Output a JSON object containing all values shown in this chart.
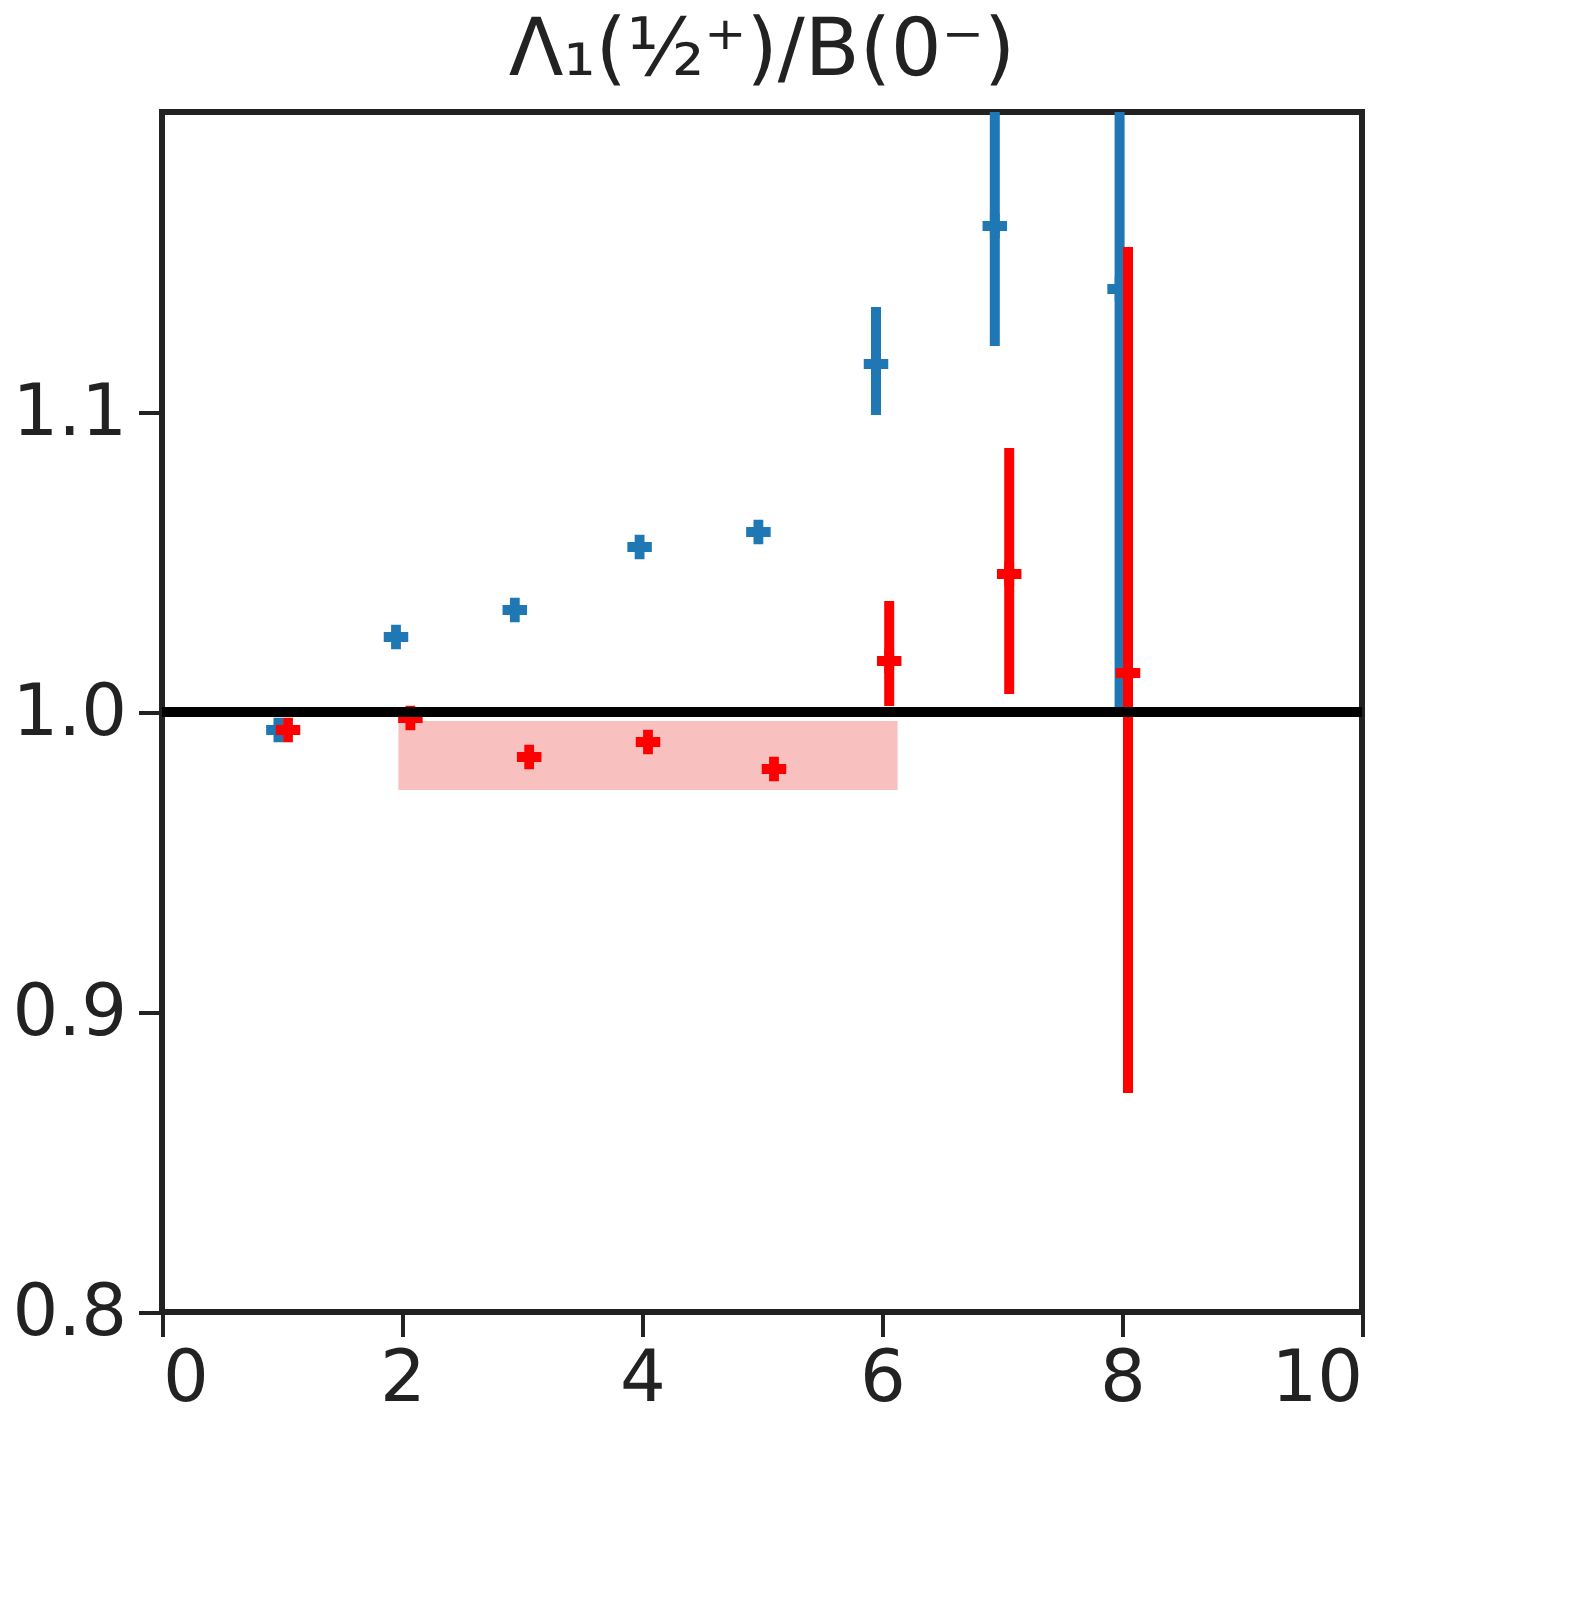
{
  "chart_data": {
    "type": "scatter",
    "title": "Λ₁(½⁺)/B(0⁻)",
    "xlim": [
      0,
      10
    ],
    "xticks": [
      0,
      2,
      4,
      6,
      8,
      10
    ],
    "ylim": [
      0.8,
      1.2
    ],
    "yticks": [
      0.8,
      0.9,
      {
        "value": 1.0,
        "label": "1.0"
      },
      1.1
    ],
    "grid": false,
    "marker": "cross",
    "series": [
      {
        "type": "area",
        "color": "#f9c0c0",
        "x": [
          1.97,
          6.13
        ],
        "values": [
          null,
          null
        ],
        "lower": [
          0.974,
          0.974
        ],
        "upper": [
          0.997,
          0.997
        ]
      },
      {
        "color": "#1f77b4",
        "x": [
          0.97,
          1.95,
          2.94,
          3.98,
          4.97,
          5.95,
          6.94,
          7.98
        ],
        "values": [
          0.994,
          1.025,
          1.034,
          1.055,
          1.06,
          1.116,
          1.162,
          1.141
        ],
        "errors": [
          null,
          null,
          null,
          null,
          null,
          [
            1.099,
            1.135
          ],
          [
            1.122,
            1.2
          ],
          [
            1.0,
            1.2
          ]
        ]
      },
      {
        "color": "#ff0000",
        "x": [
          1.05,
          2.07,
          3.06,
          4.05,
          5.1,
          6.06,
          7.06,
          8.05
        ],
        "values": [
          0.994,
          0.998,
          0.985,
          0.99,
          0.981,
          1.017,
          1.046,
          1.013
        ],
        "errors": [
          null,
          null,
          null,
          null,
          null,
          [
            1.002,
            1.037
          ],
          [
            1.006,
            1.088
          ],
          [
            0.873,
            1.155
          ]
        ]
      }
    ],
    "ref_lines": [
      {
        "axis": "y",
        "value": 1.0,
        "color": "#000000"
      }
    ]
  }
}
